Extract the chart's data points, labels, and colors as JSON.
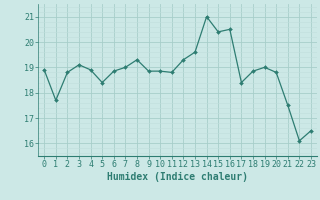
{
  "x": [
    0,
    1,
    2,
    3,
    4,
    5,
    6,
    7,
    8,
    9,
    10,
    11,
    12,
    13,
    14,
    15,
    16,
    17,
    18,
    19,
    20,
    21,
    22,
    23
  ],
  "y": [
    18.9,
    17.7,
    18.8,
    19.1,
    18.9,
    18.4,
    18.85,
    19.0,
    19.3,
    18.85,
    18.85,
    18.8,
    19.3,
    19.6,
    21.0,
    20.4,
    20.5,
    18.4,
    18.85,
    19.0,
    18.8,
    17.5,
    16.1,
    16.5
  ],
  "line_color": "#2e7d72",
  "marker": "D",
  "marker_size": 2.0,
  "bg_color": "#cce8e6",
  "grid_color_major": "#a8ceca",
  "grid_color_minor": "#c0dedd",
  "xlabel": "Humidex (Indice chaleur)",
  "xlim": [
    -0.5,
    23.5
  ],
  "ylim": [
    15.5,
    21.5
  ],
  "yticks": [
    16,
    17,
    18,
    19,
    20,
    21
  ],
  "xticks": [
    0,
    1,
    2,
    3,
    4,
    5,
    6,
    7,
    8,
    9,
    10,
    11,
    12,
    13,
    14,
    15,
    16,
    17,
    18,
    19,
    20,
    21,
    22,
    23
  ],
  "tick_color": "#2e7d72",
  "label_color": "#2e7d72",
  "spine_color": "#2e7d72",
  "tick_fontsize": 6,
  "xlabel_fontsize": 7
}
